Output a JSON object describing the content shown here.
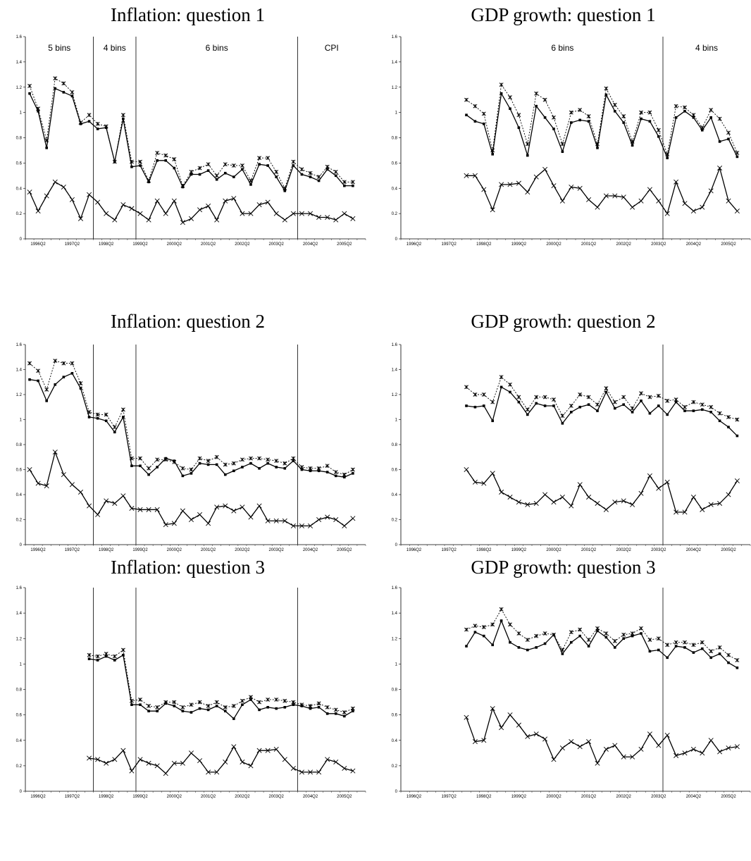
{
  "x_ticks": [
    "1996Q2",
    "1997Q2",
    "1998Q2",
    "1999Q2",
    "2000Q2",
    "2001Q2",
    "2002Q2",
    "2003Q2",
    "2004Q2",
    "2005Q2"
  ],
  "y_ticks": [
    "0",
    "0.2",
    "0.4",
    "0.6",
    "0.8",
    "1",
    "1.2",
    "1.4",
    "1.6"
  ],
  "chart_data": [
    {
      "type": "line",
      "title": "Inflation: question 1",
      "ylim": [
        0,
        1.6
      ],
      "x_start": "1996Q1",
      "x_end": "2005Q4",
      "regime_breaks": [
        "1997Q4",
        "1999Q1",
        "2003Q4"
      ],
      "regime_labels": [
        "5 bins",
        "4 bins",
        "6 bins",
        "CPI"
      ],
      "series": [
        {
          "values": [
            1.21,
            1.03,
            0.78,
            1.27,
            1.23,
            1.16,
            0.92,
            0.98,
            0.91,
            0.89,
            0.61,
            0.98,
            0.61,
            0.61,
            0.46,
            0.68,
            0.66,
            0.63,
            0.42,
            0.53,
            0.56,
            0.59,
            0.5,
            0.59,
            0.58,
            0.58,
            0.46,
            0.64,
            0.64,
            0.53,
            0.4,
            0.61,
            0.55,
            0.52,
            0.49,
            0.57,
            0.53,
            0.45,
            0.45
          ]
        },
        {
          "values": [
            1.15,
            1.01,
            0.72,
            1.19,
            1.16,
            1.13,
            0.91,
            0.93,
            0.87,
            0.88,
            0.61,
            0.95,
            0.57,
            0.58,
            0.45,
            0.62,
            0.62,
            0.56,
            0.41,
            0.51,
            0.51,
            0.54,
            0.47,
            0.52,
            0.49,
            0.55,
            0.43,
            0.59,
            0.58,
            0.49,
            0.38,
            0.58,
            0.51,
            0.49,
            0.46,
            0.55,
            0.5,
            0.42,
            0.42
          ]
        },
        {
          "values": [
            0.37,
            0.22,
            0.34,
            0.45,
            0.41,
            0.31,
            0.16,
            0.35,
            0.29,
            0.2,
            0.15,
            0.27,
            0.24,
            0.2,
            0.15,
            0.3,
            0.2,
            0.3,
            0.13,
            0.16,
            0.23,
            0.26,
            0.15,
            0.3,
            0.32,
            0.2,
            0.2,
            0.27,
            0.29,
            0.2,
            0.15,
            0.2,
            0.2,
            0.2,
            0.17,
            0.17,
            0.15,
            0.2,
            0.16
          ]
        }
      ]
    },
    {
      "type": "line",
      "title": "GDP growth: question 1",
      "ylim": [
        0,
        1.6
      ],
      "x_start": "1997Q4",
      "x_end": "2005Q4",
      "regime_breaks": [
        "2003Q2"
      ],
      "regime_labels": [
        "6 bins",
        "4 bins"
      ],
      "series": [
        {
          "values": [
            1.1,
            1.05,
            0.99,
            0.7,
            1.22,
            1.12,
            0.98,
            0.75,
            1.15,
            1.1,
            0.96,
            0.75,
            1.0,
            1.02,
            0.97,
            0.75,
            1.19,
            1.06,
            0.97,
            0.77,
            1.0,
            1.0,
            0.86,
            0.67,
            1.05,
            1.04,
            0.98,
            0.88,
            1.02,
            0.95,
            0.84,
            0.68
          ]
        },
        {
          "values": [
            0.98,
            0.93,
            0.91,
            0.67,
            1.15,
            1.03,
            0.88,
            0.66,
            1.05,
            0.96,
            0.87,
            0.69,
            0.92,
            0.94,
            0.93,
            0.72,
            1.14,
            1.01,
            0.92,
            0.74,
            0.95,
            0.93,
            0.81,
            0.64,
            0.96,
            1.01,
            0.96,
            0.86,
            0.96,
            0.77,
            0.79,
            0.65
          ]
        },
        {
          "values": [
            0.5,
            0.5,
            0.39,
            0.23,
            0.43,
            0.43,
            0.44,
            0.37,
            0.49,
            0.55,
            0.42,
            0.3,
            0.41,
            0.4,
            0.31,
            0.25,
            0.34,
            0.34,
            0.33,
            0.25,
            0.3,
            0.39,
            0.3,
            0.2,
            0.45,
            0.28,
            0.22,
            0.25,
            0.38,
            0.56,
            0.3,
            0.22
          ]
        }
      ]
    },
    {
      "type": "line",
      "title": "Inflation: question 2",
      "ylim": [
        0,
        1.6
      ],
      "x_start": "1996Q1",
      "x_end": "2005Q4",
      "regime_breaks": [
        "1997Q4",
        "1999Q1",
        "2003Q4"
      ],
      "series": [
        {
          "values": [
            1.45,
            1.39,
            1.24,
            1.47,
            1.45,
            1.45,
            1.29,
            1.06,
            1.04,
            1.04,
            0.94,
            1.08,
            0.69,
            0.69,
            0.61,
            0.68,
            0.68,
            0.66,
            0.61,
            0.6,
            0.69,
            0.67,
            0.7,
            0.64,
            0.65,
            0.68,
            0.69,
            0.69,
            0.68,
            0.67,
            0.65,
            0.69,
            0.62,
            0.61,
            0.61,
            0.63,
            0.58,
            0.56,
            0.6
          ]
        },
        {
          "values": [
            1.32,
            1.31,
            1.15,
            1.28,
            1.34,
            1.37,
            1.25,
            1.02,
            1.01,
            0.99,
            0.9,
            1.02,
            0.63,
            0.63,
            0.56,
            0.62,
            0.69,
            0.67,
            0.55,
            0.57,
            0.65,
            0.64,
            0.64,
            0.56,
            0.59,
            0.62,
            0.65,
            0.61,
            0.65,
            0.62,
            0.61,
            0.67,
            0.6,
            0.59,
            0.59,
            0.58,
            0.55,
            0.54,
            0.57
          ]
        },
        {
          "values": [
            0.6,
            0.49,
            0.47,
            0.74,
            0.56,
            0.48,
            0.42,
            0.31,
            0.24,
            0.35,
            0.33,
            0.39,
            0.29,
            0.28,
            0.28,
            0.28,
            0.16,
            0.17,
            0.27,
            0.2,
            0.24,
            0.17,
            0.3,
            0.31,
            0.27,
            0.3,
            0.22,
            0.31,
            0.19,
            0.19,
            0.19,
            0.15,
            0.15,
            0.15,
            0.2,
            0.22,
            0.2,
            0.15,
            0.21
          ]
        }
      ]
    },
    {
      "type": "line",
      "title": "GDP growth: question 2",
      "ylim": [
        0,
        1.6
      ],
      "x_start": "1997Q4",
      "x_end": "2005Q4",
      "regime_breaks": [
        "2003Q2"
      ],
      "series": [
        {
          "values": [
            1.26,
            1.2,
            1.2,
            1.14,
            1.34,
            1.28,
            1.18,
            1.08,
            1.18,
            1.18,
            1.16,
            1.03,
            1.11,
            1.2,
            1.18,
            1.12,
            1.25,
            1.14,
            1.18,
            1.09,
            1.21,
            1.18,
            1.19,
            1.15,
            1.16,
            1.1,
            1.14,
            1.12,
            1.1,
            1.05,
            1.02,
            1.0
          ]
        },
        {
          "values": [
            1.11,
            1.1,
            1.11,
            0.99,
            1.26,
            1.22,
            1.14,
            1.04,
            1.13,
            1.11,
            1.11,
            0.97,
            1.06,
            1.1,
            1.12,
            1.07,
            1.22,
            1.09,
            1.12,
            1.06,
            1.15,
            1.05,
            1.11,
            1.04,
            1.14,
            1.07,
            1.07,
            1.08,
            1.06,
            0.99,
            0.94,
            0.87
          ]
        },
        {
          "values": [
            0.6,
            0.5,
            0.49,
            0.57,
            0.42,
            0.38,
            0.34,
            0.32,
            0.33,
            0.4,
            0.34,
            0.38,
            0.31,
            0.48,
            0.38,
            0.33,
            0.28,
            0.34,
            0.35,
            0.32,
            0.41,
            0.55,
            0.45,
            0.5,
            0.26,
            0.26,
            0.38,
            0.28,
            0.32,
            0.33,
            0.4,
            0.51
          ]
        }
      ]
    },
    {
      "type": "line",
      "title": "Inflation: question 3",
      "ylim": [
        0,
        1.6
      ],
      "x_start": "1997Q4",
      "x_end": "2005Q4",
      "regime_breaks": [
        "1997Q4",
        "1999Q1",
        "2003Q4"
      ],
      "series": [
        {
          "values": [
            1.07,
            1.06,
            1.08,
            1.06,
            1.11,
            0.71,
            0.72,
            0.67,
            0.66,
            0.7,
            0.7,
            0.66,
            0.68,
            0.7,
            0.67,
            0.7,
            0.66,
            0.67,
            0.71,
            0.74,
            0.7,
            0.72,
            0.72,
            0.71,
            0.7,
            0.68,
            0.67,
            0.69,
            0.66,
            0.64,
            0.62,
            0.65
          ]
        },
        {
          "values": [
            1.04,
            1.03,
            1.06,
            1.03,
            1.07,
            0.68,
            0.68,
            0.63,
            0.63,
            0.69,
            0.67,
            0.63,
            0.62,
            0.65,
            0.64,
            0.67,
            0.63,
            0.57,
            0.68,
            0.72,
            0.64,
            0.66,
            0.65,
            0.66,
            0.68,
            0.67,
            0.65,
            0.66,
            0.61,
            0.61,
            0.59,
            0.63
          ]
        },
        {
          "values": [
            0.26,
            0.25,
            0.22,
            0.25,
            0.32,
            0.16,
            0.25,
            0.22,
            0.2,
            0.14,
            0.22,
            0.22,
            0.3,
            0.24,
            0.15,
            0.15,
            0.23,
            0.35,
            0.23,
            0.2,
            0.32,
            0.32,
            0.33,
            0.25,
            0.18,
            0.15,
            0.15,
            0.15,
            0.25,
            0.23,
            0.18,
            0.16
          ]
        }
      ]
    },
    {
      "type": "line",
      "title": "GDP growth: question 3",
      "ylim": [
        0,
        1.6
      ],
      "x_start": "1997Q4",
      "x_end": "2005Q4",
      "regime_breaks": [
        "2003Q2"
      ],
      "series": [
        {
          "values": [
            1.27,
            1.3,
            1.29,
            1.31,
            1.43,
            1.31,
            1.24,
            1.19,
            1.22,
            1.24,
            1.23,
            1.11,
            1.25,
            1.27,
            1.19,
            1.28,
            1.24,
            1.18,
            1.23,
            1.24,
            1.28,
            1.19,
            1.2,
            1.15,
            1.17,
            1.17,
            1.15,
            1.17,
            1.1,
            1.13,
            1.07,
            1.03
          ]
        },
        {
          "values": [
            1.14,
            1.25,
            1.22,
            1.15,
            1.34,
            1.17,
            1.13,
            1.11,
            1.13,
            1.16,
            1.23,
            1.08,
            1.17,
            1.22,
            1.14,
            1.26,
            1.21,
            1.13,
            1.2,
            1.22,
            1.24,
            1.1,
            1.11,
            1.05,
            1.14,
            1.13,
            1.09,
            1.12,
            1.05,
            1.08,
            1.01,
            0.97
          ]
        },
        {
          "values": [
            0.58,
            0.39,
            0.4,
            0.65,
            0.5,
            0.6,
            0.52,
            0.43,
            0.45,
            0.41,
            0.25,
            0.34,
            0.39,
            0.35,
            0.39,
            0.22,
            0.33,
            0.36,
            0.27,
            0.27,
            0.33,
            0.45,
            0.36,
            0.44,
            0.28,
            0.3,
            0.33,
            0.3,
            0.4,
            0.31,
            0.34,
            0.35
          ]
        }
      ]
    }
  ]
}
